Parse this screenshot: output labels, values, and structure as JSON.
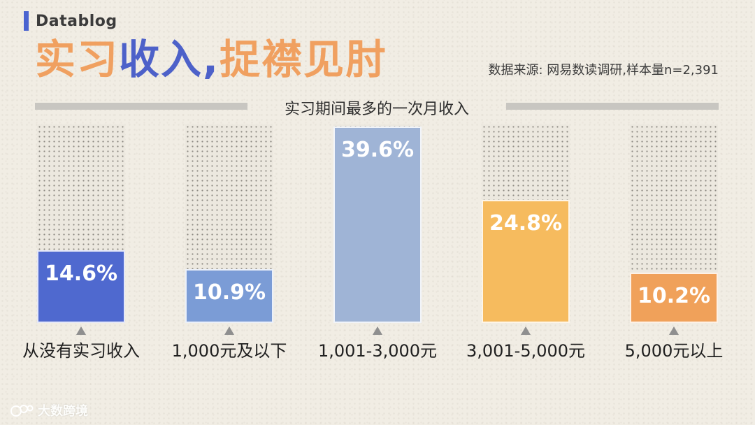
{
  "brand": {
    "label": "Datablog",
    "accent": "#4a63d0"
  },
  "title": {
    "part1": "实习",
    "part2": "收入,",
    "part3": "捉襟见肘"
  },
  "source": "数据来源: 网易数读调研,样本量n=2,391",
  "footer": {
    "text": "大数跨境",
    "icon": "logo-icon"
  },
  "chart_data": {
    "type": "bar",
    "title": "实习期间最多的一次月收入",
    "categories": [
      "从没有实习收入",
      "1,000元及以下",
      "1,001-3,000元",
      "3,001-5,000元",
      "5,000元以上"
    ],
    "values": [
      14.6,
      10.9,
      39.6,
      24.8,
      10.2
    ],
    "labels": [
      "14.6%",
      "10.9%",
      "39.6%",
      "24.8%",
      "10.2%"
    ],
    "colors": [
      "#4f69cf",
      "#7b9cd6",
      "#9fb4d6",
      "#f6bb5e",
      "#f0a15a"
    ],
    "ylim": [
      0,
      40
    ],
    "unit": "%",
    "grid": false
  }
}
